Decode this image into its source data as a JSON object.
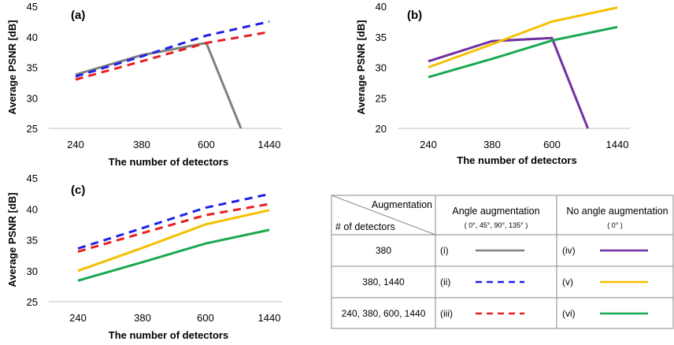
{
  "colors": {
    "i": "#808080",
    "ii": "#1f1fe8",
    "iii": "#e81f1f",
    "iv": "#7030a0",
    "v": "#f5c000",
    "vi": "#1aa850"
  },
  "chart_data": [
    {
      "type": "line",
      "panel_label": "(a)",
      "xlabel": "The number of detectors",
      "ylabel": "Average PSNR [dB]",
      "categories": [
        "240",
        "380",
        "600",
        "1440"
      ],
      "ylim": [
        25,
        45
      ],
      "yticks": [
        "25",
        "30",
        "35",
        "40",
        "45"
      ],
      "series": [
        {
          "key": "i",
          "values": [
            33.8,
            37.0,
            39.0,
            25.0
          ],
          "dashed": false,
          "x_end": 2.55
        },
        {
          "key": "ii",
          "values": [
            33.5,
            36.8,
            40.2,
            42.5
          ],
          "dashed": true
        },
        {
          "key": "iii",
          "values": [
            33.0,
            36.0,
            39.0,
            40.8
          ],
          "dashed": true
        }
      ]
    },
    {
      "type": "line",
      "panel_label": "(b)",
      "xlabel": "The number of detectors",
      "ylabel": "Average PSNR [dB]",
      "categories": [
        "240",
        "380",
        "600",
        "1440"
      ],
      "ylim": [
        20,
        40
      ],
      "yticks": [
        "20",
        "25",
        "30",
        "35",
        "40"
      ],
      "series": [
        {
          "key": "iv",
          "values": [
            31.0,
            34.3,
            34.8,
            20.0
          ],
          "dashed": false,
          "x_end": 2.55
        },
        {
          "key": "v",
          "values": [
            30.0,
            33.8,
            37.5,
            39.8
          ],
          "dashed": false
        },
        {
          "key": "vi",
          "values": [
            28.4,
            31.4,
            34.4,
            36.6
          ],
          "dashed": false
        }
      ]
    },
    {
      "type": "line",
      "panel_label": "(c)",
      "xlabel": "The number of detectors",
      "ylabel": "Average PSNR [dB]",
      "categories": [
        "240",
        "380",
        "600",
        "1440"
      ],
      "ylim": [
        25,
        45
      ],
      "yticks": [
        "25",
        "30",
        "35",
        "40",
        "45"
      ],
      "series": [
        {
          "key": "ii",
          "values": [
            33.6,
            36.9,
            40.2,
            42.4
          ],
          "dashed": true
        },
        {
          "key": "iii",
          "values": [
            33.1,
            36.1,
            39.0,
            40.8
          ],
          "dashed": true
        },
        {
          "key": "v",
          "values": [
            30.0,
            33.7,
            37.5,
            39.8
          ],
          "dashed": false
        },
        {
          "key": "vi",
          "values": [
            28.4,
            31.4,
            34.4,
            36.6
          ],
          "dashed": false
        }
      ]
    }
  ],
  "legend_table": {
    "header_aug": "Augmentation",
    "header_det": "# of detectors",
    "col1_title": "Angle augmentation",
    "col1_sub": "( 0°, 45°, 90°, 135° )",
    "col2_title": "No angle augmentation",
    "col2_sub": "( 0° )",
    "rows": [
      {
        "detectors": "380",
        "left_label": "(i)",
        "left_key": "i",
        "right_label": "(iv)",
        "right_key": "iv"
      },
      {
        "detectors": "380, 1440",
        "left_label": "(ii)",
        "left_key": "ii",
        "right_label": "(v)",
        "right_key": "v"
      },
      {
        "detectors": "240, 380, 600, 1440",
        "left_label": "(iii)",
        "left_key": "iii",
        "right_label": "(vi)",
        "right_key": "vi"
      }
    ]
  }
}
